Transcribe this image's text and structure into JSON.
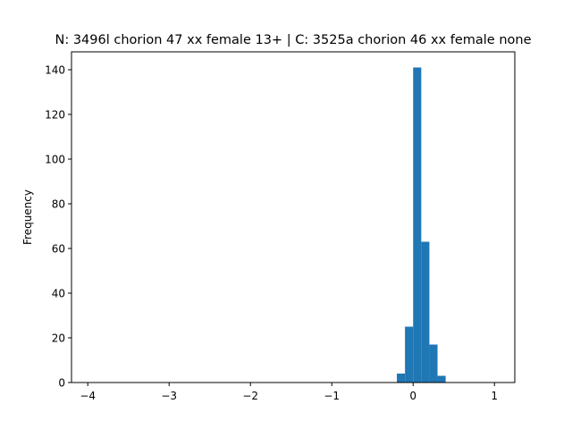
{
  "chart_data": {
    "type": "bar",
    "title": "N: 3496l chorion 47 xx female 13+ | C: 3525a chorion 46 xx female none",
    "xlabel": "",
    "ylabel": "Frequency",
    "xlim": [
      -4.2,
      1.25
    ],
    "ylim": [
      0,
      148
    ],
    "xticks": [
      -4,
      -3,
      -2,
      -1,
      0,
      1
    ],
    "xtick_labels": [
      "−4",
      "−3",
      "−2",
      "−1",
      "0",
      "1"
    ],
    "yticks": [
      0,
      20,
      40,
      60,
      80,
      100,
      120,
      140
    ],
    "ytick_labels": [
      "0",
      "20",
      "40",
      "60",
      "80",
      "100",
      "120",
      "140"
    ],
    "bins": [
      {
        "x0": -0.2,
        "x1": -0.1,
        "value": 4
      },
      {
        "x0": -0.1,
        "x1": 0.0,
        "value": 25
      },
      {
        "x0": 0.0,
        "x1": 0.1,
        "value": 141
      },
      {
        "x0": 0.1,
        "x1": 0.2,
        "value": 63
      },
      {
        "x0": 0.2,
        "x1": 0.3,
        "value": 17
      },
      {
        "x0": 0.3,
        "x1": 0.4,
        "value": 3
      }
    ],
    "bar_color": "#1f77b4",
    "grid": false
  }
}
